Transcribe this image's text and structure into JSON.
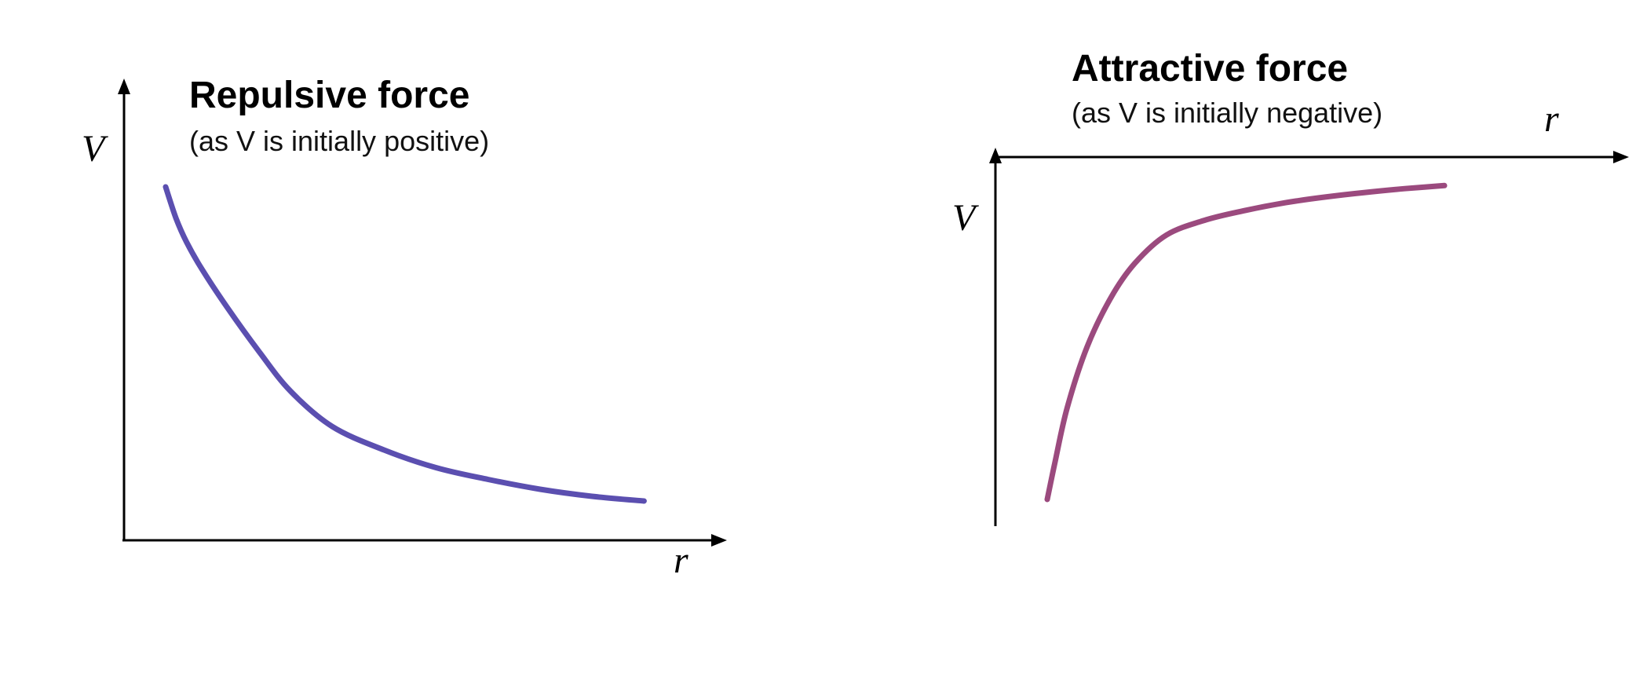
{
  "chart_data": [
    {
      "type": "line",
      "title": "Repulsive force",
      "subtitle": "(as V is initially positive)",
      "xlabel": "r",
      "ylabel": "V",
      "grid": false,
      "legend": "none",
      "axes": "origin at bottom-left; r axis arrow to the right, V axis arrow upward",
      "x": [
        0.4,
        0.5,
        0.6,
        0.75,
        1.0,
        1.3,
        1.6,
        2.0,
        2.5,
        3.0,
        3.5,
        4.0,
        4.5,
        5.0
      ],
      "series": [
        {
          "color": "#5b4fb0",
          "values": [
            9.0,
            8.2,
            7.6,
            6.9,
            5.9,
            4.8,
            3.8,
            2.9,
            2.3,
            1.85,
            1.55,
            1.3,
            1.12,
            1.0
          ]
        }
      ]
    },
    {
      "type": "line",
      "title": "Attractive force",
      "subtitle": "(as V is initially negative)",
      "xlabel": "r",
      "ylabel": "V",
      "grid": false,
      "legend": "none",
      "axes": "origin at top-left; r axis arrow to the right along the top, V axis arrow upward, curve lies below the r axis",
      "x": [
        0.5,
        0.6,
        0.75,
        1.0,
        1.3,
        1.6,
        2.0,
        2.5,
        3.0,
        3.5,
        4.0,
        4.5,
        5.0,
        5.5
      ],
      "series": [
        {
          "color": "#9b4a7e",
          "values": [
            -9.0,
            -8.0,
            -6.6,
            -5.0,
            -3.7,
            -2.8,
            -2.05,
            -1.65,
            -1.4,
            -1.2,
            -1.05,
            -0.93,
            -0.83,
            -0.75
          ]
        }
      ]
    }
  ]
}
